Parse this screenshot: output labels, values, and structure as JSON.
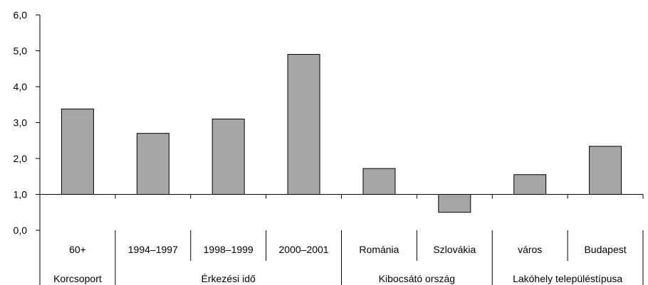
{
  "chart_data": {
    "type": "bar",
    "ylim": [
      0,
      6
    ],
    "yticks": [
      "0,0",
      "1,0",
      "2,0",
      "3,0",
      "4,0",
      "5,0",
      "6,0"
    ],
    "categories": [
      "60+",
      "1994–1997",
      "1998–1999",
      "2000–2001",
      "Románia",
      "Szlovákia",
      "város",
      "Budapest"
    ],
    "groups": [
      {
        "label": "Korcsoport",
        "span": 1
      },
      {
        "label": "Érkezési idő",
        "span": 3
      },
      {
        "label": "Kibocsátó ország",
        "span": 2
      },
      {
        "label": "Lakóhely településtípusa",
        "span": 2
      }
    ],
    "series": [
      {
        "values": [
          3.38,
          2.7,
          3.1,
          4.9,
          1.72,
          0.5,
          1.55,
          2.34
        ]
      }
    ],
    "bar_color": "#a6a6a6",
    "grid": false,
    "reference_line": 1.0
  }
}
